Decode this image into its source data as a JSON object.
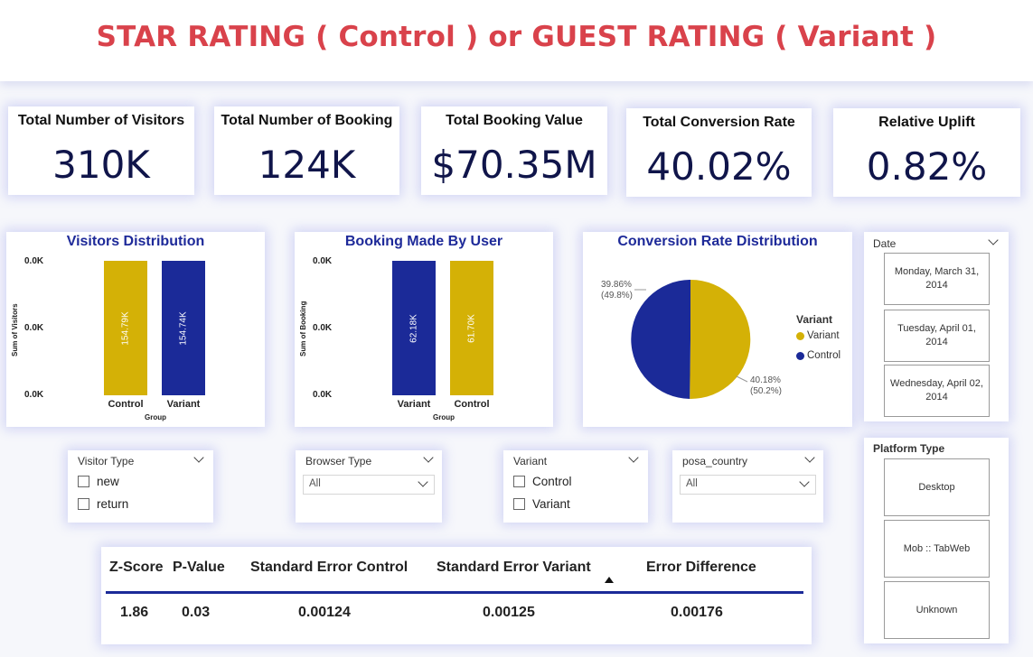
{
  "header": {
    "title": "STAR RATING ( Control )  or GUEST RATING ( Variant )"
  },
  "kpis": [
    {
      "label": "Total Number of Visitors",
      "value": "310K"
    },
    {
      "label": "Total Number of Booking",
      "value": "124K"
    },
    {
      "label": "Total Booking Value",
      "value": "$70.35M"
    },
    {
      "label": "Total Conversion Rate",
      "value": "40.02%"
    },
    {
      "label": "Relative Uplift",
      "value": "0.82%"
    }
  ],
  "colors": {
    "control": "#d4b106",
    "variant": "#1b2a98",
    "title_red": "#d9424b",
    "accent_blue": "#1e2a99"
  },
  "chart_data": [
    {
      "type": "bar",
      "title": "Visitors Distribution",
      "xlabel": "Group",
      "ylabel": "Sum of Visitors",
      "yticks": [
        "0.0K",
        "0.0K",
        "0.0K"
      ],
      "categories": [
        "Control",
        "Variant"
      ],
      "values": [
        154790,
        154740
      ],
      "data_labels": [
        "154.79K",
        "154.74K"
      ],
      "colors": [
        "#d4b106",
        "#1b2a98"
      ]
    },
    {
      "type": "bar",
      "title": "Booking Made By User",
      "xlabel": "Group",
      "ylabel": "Sum of Booking",
      "yticks": [
        "0.0K",
        "0.0K",
        "0.0K"
      ],
      "categories": [
        "Variant",
        "Control"
      ],
      "values": [
        62180,
        61700
      ],
      "data_labels": [
        "62.18K",
        "61.70K"
      ],
      "colors": [
        "#1b2a98",
        "#d4b106"
      ]
    },
    {
      "type": "pie",
      "title": "Conversion Rate Distribution",
      "legend_title": "Variant",
      "slices": [
        {
          "name": "Variant",
          "value": 40.18,
          "share": 50.2,
          "label": "40.18%",
          "share_label": "(50.2%)",
          "color": "#d4b106"
        },
        {
          "name": "Control",
          "value": 39.86,
          "share": 49.8,
          "label": "39.86%",
          "share_label": "(49.8%)",
          "color": "#1b2a98"
        }
      ]
    }
  ],
  "date_slicer": {
    "title": "Date",
    "items": [
      "Monday, March 31, 2014",
      "Tuesday, April 01, 2014",
      "Wednesday, April 02, 2014"
    ]
  },
  "platform_slicer": {
    "title": "Platform Type",
    "items": [
      "Desktop",
      "Mob :: TabWeb",
      "Unknown"
    ]
  },
  "slicers": {
    "visitor_type": {
      "title": "Visitor Type",
      "options": [
        "new",
        "return"
      ]
    },
    "browser_type": {
      "title": "Browser Type",
      "selected": "All"
    },
    "variant": {
      "title": "Variant",
      "options": [
        "Control",
        "Variant"
      ]
    },
    "posa_country": {
      "title": "posa_country",
      "selected": "All"
    }
  },
  "stats_table": {
    "headers": [
      "Z-Score",
      "P-Value",
      "Standard Error Control",
      "Standard Error Variant",
      "Error Difference"
    ],
    "row": [
      "1.86",
      "0.03",
      "0.00124",
      "0.00125",
      "0.00176"
    ]
  }
}
